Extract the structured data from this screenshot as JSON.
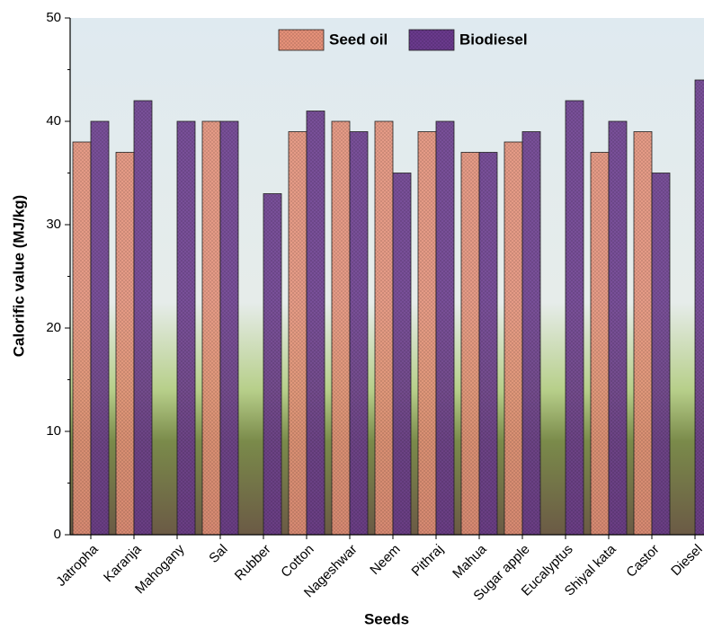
{
  "chart_data": {
    "type": "bar",
    "x_label": "Seeds",
    "y_label": "Calorific value (MJ/kg)",
    "categories": [
      "Jatropha",
      "Karanja",
      "Mahogany",
      "Sal",
      "Rubber",
      "Cotton",
      "Nageshwar",
      "Neem",
      "Pithraj",
      "Mahua",
      "Sugar apple",
      "Eucalyptus",
      "Shiyal kata",
      "Castor",
      "Diesel"
    ],
    "series": [
      {
        "name": "Seed oil",
        "color": "#e8927a",
        "values": [
          38,
          37,
          null,
          40,
          null,
          39,
          40,
          40,
          39,
          37,
          38,
          null,
          37,
          39,
          null
        ]
      },
      {
        "name": "Biodiesel",
        "color": "#6b3a8e",
        "values": [
          40,
          42,
          40,
          40,
          33,
          41,
          39,
          35,
          40,
          37,
          39,
          42,
          40,
          35,
          44
        ]
      }
    ],
    "ylim": [
      0,
      50
    ],
    "yticks": [
      0,
      10,
      20,
      30,
      40,
      50
    ]
  }
}
